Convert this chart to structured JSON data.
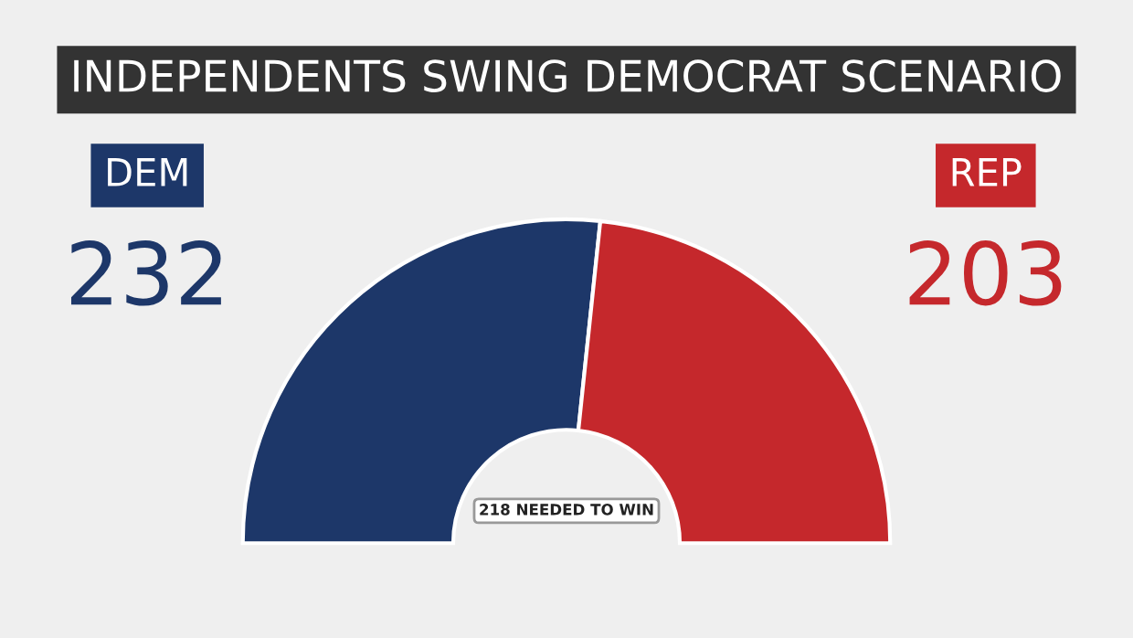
{
  "chart_data": {
    "type": "donut",
    "title": "INDEPENDENTS SWING DEMOCRAT SCENARIO",
    "categories": [
      "DEM",
      "REP"
    ],
    "values": [
      232,
      203
    ],
    "colors": [
      "#1d3769",
      "#c5282c"
    ],
    "data_labels": true,
    "annotations": [
      "218 NEEDED TO WIN"
    ]
  }
}
